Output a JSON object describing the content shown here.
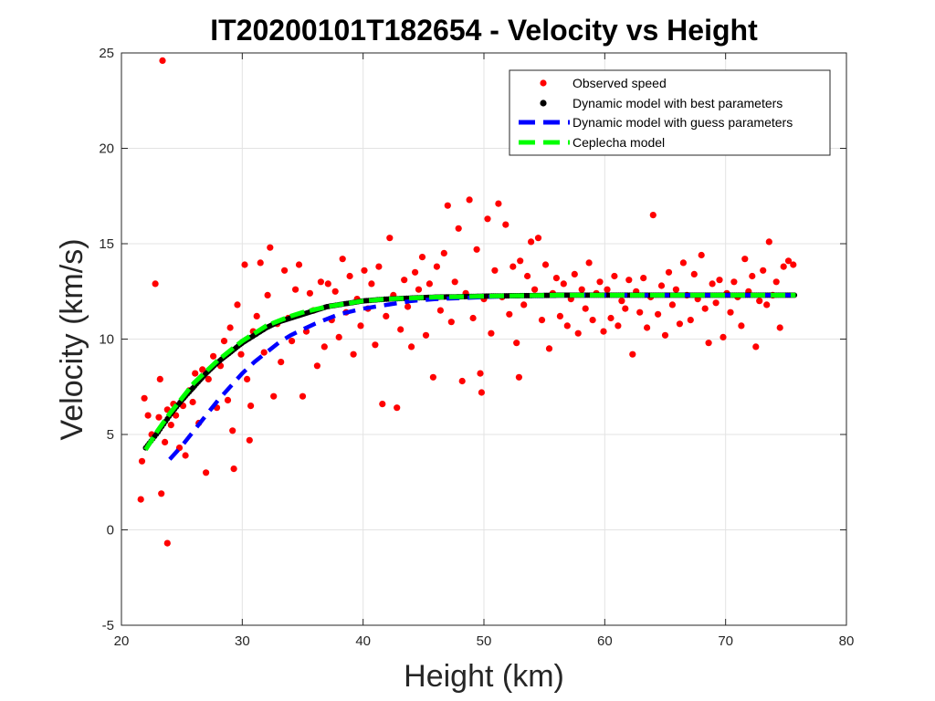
{
  "chart_data": {
    "type": "scatter",
    "title": "IT20200101T182654 - Velocity vs Height",
    "xlabel": "Height (km)",
    "ylabel": "Velocity (km/s)",
    "xlim": [
      20,
      80
    ],
    "ylim": [
      -5,
      25
    ],
    "xticks": [
      20,
      30,
      40,
      50,
      60,
      70,
      80
    ],
    "yticks": [
      -5,
      0,
      5,
      10,
      15,
      20,
      25
    ],
    "grid": true,
    "legend_position": "top-right",
    "series": [
      {
        "name": "Observed speed",
        "kind": "scatter",
        "color": "#ff0000",
        "points": [
          [
            21.6,
            1.6
          ],
          [
            21.7,
            3.6
          ],
          [
            21.9,
            6.9
          ],
          [
            22.2,
            6.0
          ],
          [
            22.5,
            5.0
          ],
          [
            22.8,
            12.9
          ],
          [
            23.1,
            5.9
          ],
          [
            23.2,
            7.9
          ],
          [
            23.3,
            1.9
          ],
          [
            23.4,
            24.6
          ],
          [
            23.6,
            4.6
          ],
          [
            23.8,
            -0.7
          ],
          [
            23.8,
            6.3
          ],
          [
            24.1,
            5.5
          ],
          [
            24.3,
            6.6
          ],
          [
            24.5,
            6.0
          ],
          [
            24.8,
            4.3
          ],
          [
            25.1,
            6.5
          ],
          [
            25.3,
            3.9
          ],
          [
            25.6,
            7.3
          ],
          [
            25.9,
            6.7
          ],
          [
            26.1,
            8.2
          ],
          [
            26.4,
            5.6
          ],
          [
            26.7,
            8.4
          ],
          [
            27.0,
            3.0
          ],
          [
            27.2,
            7.9
          ],
          [
            27.6,
            9.1
          ],
          [
            27.9,
            6.4
          ],
          [
            28.2,
            8.6
          ],
          [
            28.5,
            9.9
          ],
          [
            28.8,
            6.8
          ],
          [
            29.0,
            10.6
          ],
          [
            29.2,
            5.2
          ],
          [
            29.3,
            3.2
          ],
          [
            29.6,
            11.8
          ],
          [
            29.9,
            9.2
          ],
          [
            30.2,
            13.9
          ],
          [
            30.4,
            7.9
          ],
          [
            30.6,
            4.7
          ],
          [
            30.7,
            6.5
          ],
          [
            30.9,
            10.4
          ],
          [
            31.2,
            11.2
          ],
          [
            31.5,
            14.0
          ],
          [
            31.8,
            9.3
          ],
          [
            32.1,
            12.3
          ],
          [
            32.3,
            14.8
          ],
          [
            32.6,
            7.0
          ],
          [
            32.9,
            10.8
          ],
          [
            33.2,
            8.8
          ],
          [
            33.5,
            13.6
          ],
          [
            33.8,
            11.1
          ],
          [
            34.1,
            9.9
          ],
          [
            34.4,
            12.6
          ],
          [
            34.7,
            13.9
          ],
          [
            35.0,
            7.0
          ],
          [
            35.3,
            10.4
          ],
          [
            35.6,
            12.4
          ],
          [
            35.9,
            11.5
          ],
          [
            36.2,
            8.6
          ],
          [
            36.5,
            13.0
          ],
          [
            36.8,
            9.6
          ],
          [
            37.1,
            12.9
          ],
          [
            37.4,
            11.0
          ],
          [
            37.7,
            12.5
          ],
          [
            38.0,
            10.1
          ],
          [
            38.3,
            14.2
          ],
          [
            38.6,
            11.4
          ],
          [
            38.9,
            13.3
          ],
          [
            39.2,
            9.2
          ],
          [
            39.5,
            12.1
          ],
          [
            39.8,
            10.7
          ],
          [
            40.1,
            13.6
          ],
          [
            40.4,
            11.6
          ],
          [
            40.7,
            12.9
          ],
          [
            41.0,
            9.7
          ],
          [
            41.3,
            13.8
          ],
          [
            41.6,
            6.6
          ],
          [
            41.9,
            11.2
          ],
          [
            42.2,
            15.3
          ],
          [
            42.5,
            12.3
          ],
          [
            42.8,
            6.4
          ],
          [
            43.1,
            10.5
          ],
          [
            43.4,
            13.1
          ],
          [
            43.7,
            11.7
          ],
          [
            44.0,
            9.6
          ],
          [
            44.3,
            13.5
          ],
          [
            44.6,
            12.6
          ],
          [
            44.9,
            14.3
          ],
          [
            45.2,
            10.2
          ],
          [
            45.5,
            12.9
          ],
          [
            45.8,
            8.0
          ],
          [
            46.1,
            13.8
          ],
          [
            46.4,
            11.5
          ],
          [
            46.7,
            14.5
          ],
          [
            47.0,
            17.0
          ],
          [
            47.3,
            10.9
          ],
          [
            47.6,
            13.0
          ],
          [
            47.9,
            15.8
          ],
          [
            48.2,
            7.8
          ],
          [
            48.5,
            12.4
          ],
          [
            48.8,
            17.3
          ],
          [
            49.1,
            11.1
          ],
          [
            49.4,
            14.7
          ],
          [
            49.7,
            8.2
          ],
          [
            49.8,
            7.2
          ],
          [
            50.0,
            12.1
          ],
          [
            50.3,
            16.3
          ],
          [
            50.6,
            10.3
          ],
          [
            50.9,
            13.6
          ],
          [
            51.2,
            17.1
          ],
          [
            51.5,
            12.2
          ],
          [
            51.8,
            16.0
          ],
          [
            52.1,
            11.3
          ],
          [
            52.4,
            13.8
          ],
          [
            52.7,
            9.8
          ],
          [
            52.9,
            8.0
          ],
          [
            53.0,
            14.1
          ],
          [
            53.3,
            11.8
          ],
          [
            53.6,
            13.3
          ],
          [
            53.9,
            15.1
          ],
          [
            54.2,
            12.6
          ],
          [
            54.5,
            15.3
          ],
          [
            54.8,
            11.0
          ],
          [
            55.1,
            13.9
          ],
          [
            55.4,
            9.5
          ],
          [
            55.7,
            12.4
          ],
          [
            56.0,
            13.2
          ],
          [
            56.3,
            11.2
          ],
          [
            56.6,
            12.9
          ],
          [
            56.9,
            10.7
          ],
          [
            57.2,
            12.1
          ],
          [
            57.5,
            13.4
          ],
          [
            57.8,
            10.3
          ],
          [
            58.1,
            12.6
          ],
          [
            58.4,
            11.6
          ],
          [
            58.7,
            14.0
          ],
          [
            59.0,
            11.0
          ],
          [
            59.3,
            12.4
          ],
          [
            59.6,
            13.0
          ],
          [
            59.9,
            10.4
          ],
          [
            60.2,
            12.6
          ],
          [
            60.5,
            11.1
          ],
          [
            60.8,
            13.3
          ],
          [
            61.1,
            10.7
          ],
          [
            61.4,
            12.0
          ],
          [
            61.7,
            11.6
          ],
          [
            62.0,
            13.1
          ],
          [
            62.3,
            9.2
          ],
          [
            62.6,
            12.5
          ],
          [
            62.9,
            11.4
          ],
          [
            63.2,
            13.2
          ],
          [
            63.5,
            10.6
          ],
          [
            63.8,
            12.2
          ],
          [
            64.0,
            16.5
          ],
          [
            64.4,
            11.3
          ],
          [
            64.7,
            12.8
          ],
          [
            65.0,
            10.2
          ],
          [
            65.3,
            13.5
          ],
          [
            65.6,
            11.8
          ],
          [
            65.9,
            12.6
          ],
          [
            66.2,
            10.8
          ],
          [
            66.5,
            14.0
          ],
          [
            66.8,
            12.3
          ],
          [
            67.1,
            11.0
          ],
          [
            67.4,
            13.4
          ],
          [
            67.7,
            12.1
          ],
          [
            68.0,
            14.4
          ],
          [
            68.3,
            11.6
          ],
          [
            68.6,
            9.8
          ],
          [
            68.9,
            12.9
          ],
          [
            69.2,
            11.9
          ],
          [
            69.5,
            13.1
          ],
          [
            69.8,
            10.1
          ],
          [
            70.1,
            12.4
          ],
          [
            70.4,
            11.4
          ],
          [
            70.7,
            13.0
          ],
          [
            71.0,
            12.2
          ],
          [
            71.3,
            10.7
          ],
          [
            71.6,
            14.2
          ],
          [
            71.9,
            12.5
          ],
          [
            72.2,
            13.3
          ],
          [
            72.5,
            9.6
          ],
          [
            72.8,
            12.0
          ],
          [
            73.1,
            13.6
          ],
          [
            73.4,
            11.8
          ],
          [
            73.6,
            15.1
          ],
          [
            73.9,
            12.3
          ],
          [
            74.2,
            13.0
          ],
          [
            74.5,
            10.6
          ],
          [
            74.8,
            13.8
          ],
          [
            75.2,
            14.1
          ],
          [
            75.6,
            13.9
          ]
        ]
      },
      {
        "name": "Dynamic model with best parameters",
        "kind": "dots",
        "color": "#000000",
        "x": [
          22.0,
          23.0,
          24.0,
          25.0,
          26.0,
          27.0,
          28.0,
          29.0,
          30.0,
          31.0,
          32.0,
          33.0,
          34.0,
          35.0,
          36.0,
          37.0,
          38.0,
          40.0,
          42.0,
          44.0,
          46.0,
          48.0,
          50.0,
          52.0,
          54.0,
          56.0,
          58.0,
          60.0,
          62.0,
          64.0,
          66.0,
          68.0,
          70.0,
          72.0,
          74.0,
          75.8
        ],
        "y": [
          4.3,
          5.1,
          6.0,
          6.8,
          7.5,
          8.2,
          8.8,
          9.3,
          9.8,
          10.2,
          10.6,
          10.9,
          11.1,
          11.3,
          11.5,
          11.7,
          11.8,
          12.0,
          12.1,
          12.15,
          12.2,
          12.22,
          12.25,
          12.27,
          12.28,
          12.3,
          12.3,
          12.3,
          12.3,
          12.3,
          12.3,
          12.3,
          12.3,
          12.3,
          12.3,
          12.3
        ]
      },
      {
        "name": "Dynamic model with guess parameters",
        "kind": "dashed",
        "color": "#0000ff",
        "x": [
          24.0,
          25.0,
          26.0,
          27.0,
          28.0,
          29.0,
          30.0,
          31.0,
          32.0,
          33.0,
          34.0,
          35.0,
          36.0,
          38.0,
          40.0,
          42.0,
          44.0,
          46.0,
          48.0,
          50.0,
          52.0,
          54.0,
          56.0,
          58.0,
          60.0,
          62.0,
          64.0,
          66.0,
          68.0,
          70.0,
          72.0,
          74.0,
          75.8
        ],
        "y": [
          3.7,
          4.4,
          5.2,
          6.0,
          6.8,
          7.5,
          8.2,
          8.8,
          9.3,
          9.8,
          10.2,
          10.5,
          10.8,
          11.3,
          11.6,
          11.8,
          12.0,
          12.1,
          12.15,
          12.2,
          12.25,
          12.27,
          12.28,
          12.3,
          12.3,
          12.3,
          12.3,
          12.3,
          12.3,
          12.3,
          12.3,
          12.3,
          12.3
        ]
      },
      {
        "name": "Ceplecha model",
        "kind": "dashed",
        "color": "#00ff00",
        "x": [
          22.0,
          23.0,
          24.0,
          25.0,
          26.0,
          27.0,
          28.0,
          29.0,
          30.0,
          31.0,
          32.0,
          33.0,
          34.0,
          35.0,
          36.0,
          37.0,
          38.0,
          40.0,
          42.0,
          44.0,
          46.0,
          48.0,
          50.0,
          52.0,
          54.0,
          56.0,
          58.0,
          60.0,
          62.0,
          64.0,
          66.0,
          68.0,
          70.0,
          72.0,
          74.0,
          75.8
        ],
        "y": [
          4.2,
          5.2,
          6.1,
          6.9,
          7.7,
          8.3,
          8.9,
          9.4,
          9.9,
          10.3,
          10.7,
          10.95,
          11.2,
          11.4,
          11.55,
          11.7,
          11.8,
          12.0,
          12.1,
          12.15,
          12.2,
          12.22,
          12.25,
          12.27,
          12.28,
          12.3,
          12.3,
          12.3,
          12.3,
          12.3,
          12.3,
          12.3,
          12.3,
          12.3,
          12.3,
          12.3
        ]
      }
    ]
  }
}
